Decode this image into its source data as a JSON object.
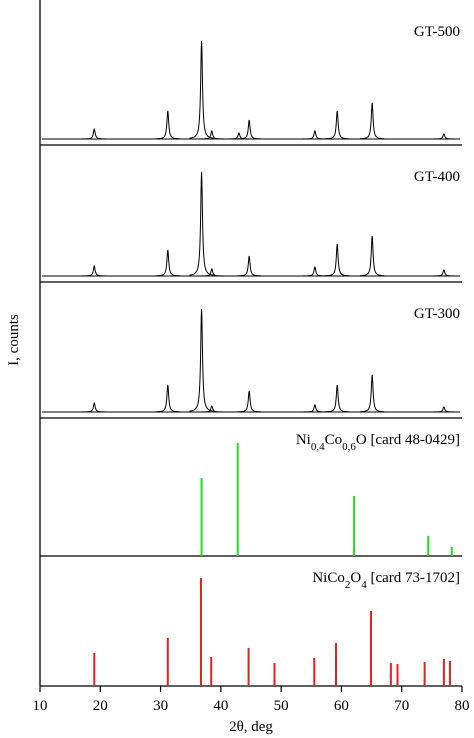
{
  "chart_data": {
    "type": "stacked",
    "xlabel": "2θ, deg",
    "ylabel": "I, counts",
    "xlim": [
      10,
      80
    ],
    "xticks": [
      10,
      20,
      30,
      40,
      50,
      60,
      70,
      80
    ],
    "panels": [
      {
        "type": "line",
        "title_parts": [
          {
            "text": "GT-500"
          }
        ],
        "color": "#000000",
        "ylim": [
          -6,
          139
        ],
        "x": [
          19.0,
          31.2,
          36.8,
          38.5,
          43.0,
          44.7,
          55.6,
          59.3,
          65.1,
          77.0
        ],
        "values": [
          10,
          28,
          98,
          8,
          6,
          19,
          8,
          28,
          36,
          5
        ]
      },
      {
        "type": "line",
        "title_parts": [
          {
            "text": "GT-400"
          }
        ],
        "color": "#000000",
        "ylim": [
          -6,
          131
        ],
        "x": [
          19.0,
          31.2,
          36.8,
          38.5,
          44.7,
          55.6,
          59.3,
          65.1,
          77.0
        ],
        "values": [
          10,
          26,
          104,
          7,
          20,
          9,
          32,
          40,
          6
        ]
      },
      {
        "type": "line",
        "title_parts": [
          {
            "text": "GT-300"
          }
        ],
        "color": "#000000",
        "ylim": [
          -6,
          130
        ],
        "x": [
          19.0,
          31.2,
          36.8,
          38.5,
          44.7,
          55.6,
          59.3,
          65.1,
          77.0
        ],
        "values": [
          9,
          27,
          103,
          6,
          21,
          7,
          27,
          37,
          5
        ]
      },
      {
        "type": "stick",
        "title_parts": [
          {
            "text": "Ni"
          },
          {
            "text": "0,4",
            "sub": true
          },
          {
            "text": "Co"
          },
          {
            "text": "0,6",
            "sub": true
          },
          {
            "text": "O [card 48-0429]"
          }
        ],
        "color": "#22dd22",
        "ylim": [
          0,
          138
        ],
        "x": [
          36.8,
          42.8,
          62.1,
          74.4,
          78.3
        ],
        "values": [
          78,
          113,
          60,
          20,
          9
        ]
      },
      {
        "type": "stick",
        "title_parts": [
          {
            "text": "NiCo"
          },
          {
            "text": "2",
            "sub": true
          },
          {
            "text": "O"
          },
          {
            "text": "4",
            "sub": true
          },
          {
            "text": " [card 73-1702]"
          }
        ],
        "color": "#dd2222",
        "ylim": [
          0,
          130
        ],
        "x": [
          19.0,
          31.2,
          36.7,
          38.4,
          44.6,
          48.9,
          55.5,
          59.1,
          64.9,
          68.2,
          69.3,
          73.8,
          77.0,
          78.0
        ],
        "values": [
          33,
          48,
          108,
          29,
          38,
          23,
          28,
          43,
          75,
          23,
          22,
          24,
          27,
          25
        ]
      }
    ]
  }
}
